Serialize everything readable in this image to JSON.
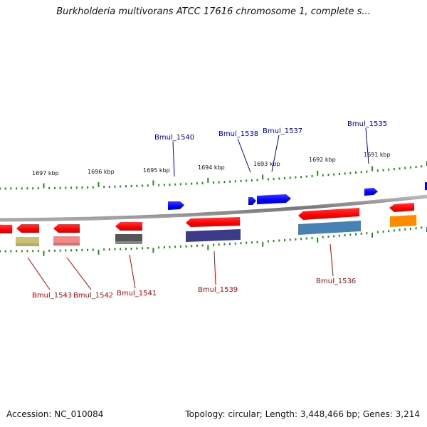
{
  "title": "Burkholderia multivorans ATCC 17616 chromosome 1, complete s...",
  "footer": {
    "accession": "Accession: NC_010084",
    "summary": "Topology: circular; Length: 3,448,466 bp; Genes: 3,214"
  },
  "scale_labels": [
    "1697 kbp",
    "1696 kbp",
    "1695 kbp",
    "1694 kbp",
    "1693 kbp",
    "1692 kbp",
    "1691 kbp"
  ],
  "genes_forward": [
    "Bmul_1540",
    "Bmul_1538",
    "Bmul_1537",
    "Bmul_1535"
  ],
  "genes_reverse": [
    "Bmul_1543",
    "Bmul_1542",
    "Bmul_1541",
    "Bmul_1539",
    "Bmul_1536"
  ],
  "colors": {
    "forward_label": "#0000aa",
    "reverse_label": "#cc0000",
    "forward_gene": "#0000ff",
    "reverse_gene": "#ff0000",
    "backbone": "#888888",
    "tick": "#228b22"
  }
}
